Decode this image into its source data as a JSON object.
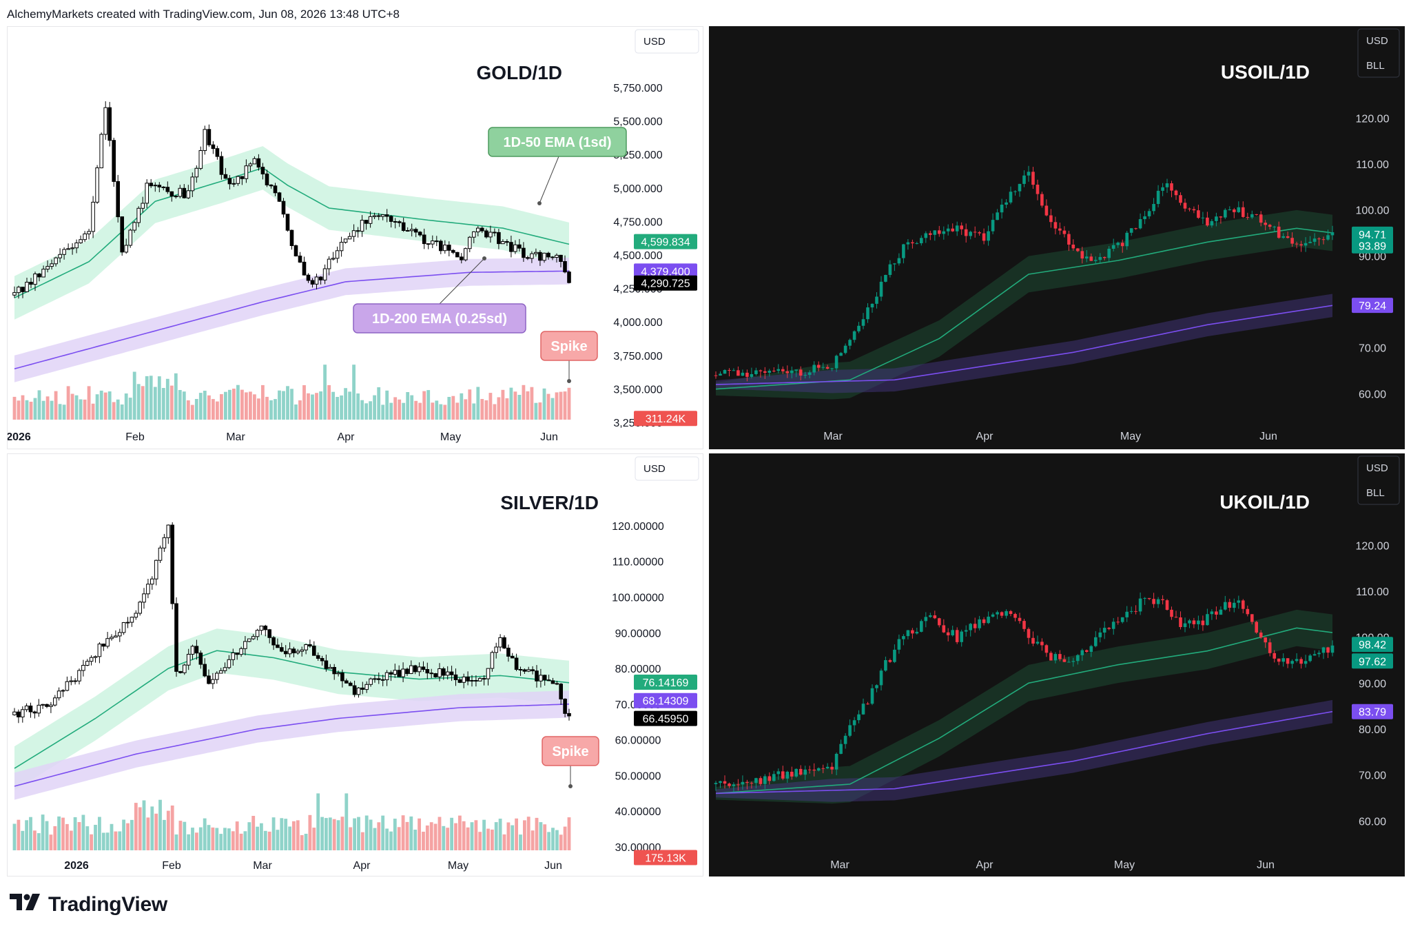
{
  "header": {
    "text": "AlchemyMarkets created with TradingView.com, Jun 08, 2026 13:48 UTC+8"
  },
  "footer": {
    "brand": "TradingView",
    "logo_icon": "tradingview-logo-icon"
  },
  "colors": {
    "up_light": "#26a69a",
    "down_light": "#ef5350",
    "up_dark": "#089981",
    "down_dark": "#f23645",
    "ema50": "#22ab7c",
    "ema200": "#7b4ef0",
    "band50_light": "#cdf3e1",
    "band200_light": "#e0d3f7",
    "vol_up": "#8fd3c9",
    "vol_down": "#f5a3a3"
  },
  "chart_data": [
    {
      "id": "gold",
      "type": "candlestick",
      "title": "GOLD/1D",
      "currency": "USD",
      "theme": "light",
      "yticks": [
        "5,750.000",
        "5,500.000",
        "5,250.000",
        "5,000.000",
        "4,750.000",
        "4,500.000",
        "4,250.000",
        "4,000.000",
        "3,750.000",
        "3,500.000",
        "3,250.000"
      ],
      "ylim": [
        3250,
        5750
      ],
      "xticks": [
        "2026",
        "Feb",
        "Mar",
        "Apr",
        "May",
        "Jun"
      ],
      "price_labels": [
        {
          "value": "4,599.834",
          "price": 4599.834,
          "color": "#22ab7c"
        },
        {
          "value": "4,379.400",
          "price": 4379.4,
          "color": "#7b4ef0"
        },
        {
          "value": "4,290.725",
          "price": 4290.725,
          "color": "#000000"
        },
        {
          "value": "311.24K",
          "price": 3280,
          "color": "#ef5350"
        }
      ],
      "annotations": [
        {
          "text": "1D-50 EMA (1sd)",
          "kind": "ema50"
        },
        {
          "text": "1D-200 EMA (0.25sd)",
          "kind": "ema200"
        },
        {
          "text": "Spike",
          "kind": "spike"
        }
      ],
      "volume_spike_index": "last",
      "series": [
        {
          "name": "price",
          "anchors": [
            [
              0,
              4200
            ],
            [
              8,
              4400
            ],
            [
              18,
              4700
            ],
            [
              22,
              5600
            ],
            [
              26,
              4500
            ],
            [
              32,
              5000
            ],
            [
              42,
              4950
            ],
            [
              46,
              5400
            ],
            [
              52,
              5000
            ],
            [
              58,
              5200
            ],
            [
              64,
              4900
            ],
            [
              68,
              4500
            ],
            [
              72,
              4250
            ],
            [
              76,
              4450
            ],
            [
              82,
              4700
            ],
            [
              90,
              4800
            ],
            [
              100,
              4600
            ],
            [
              108,
              4500
            ],
            [
              112,
              4700
            ],
            [
              118,
              4600
            ],
            [
              124,
              4480
            ],
            [
              130,
              4500
            ],
            [
              133,
              4400
            ],
            [
              134,
              4290
            ]
          ]
        },
        {
          "name": "1D-50 EMA",
          "anchors": [
            [
              0,
              4180
            ],
            [
              18,
              4450
            ],
            [
              34,
              4900
            ],
            [
              50,
              5050
            ],
            [
              60,
              5150
            ],
            [
              66,
              5020
            ],
            [
              76,
              4850
            ],
            [
              100,
              4760
            ],
            [
              118,
              4700
            ],
            [
              134,
              4580
            ]
          ]
        },
        {
          "name": "1D-200 EMA",
          "anchors": [
            [
              0,
              3650
            ],
            [
              30,
              3900
            ],
            [
              60,
              4150
            ],
            [
              80,
              4300
            ],
            [
              110,
              4370
            ],
            [
              134,
              4380
            ]
          ]
        }
      ]
    },
    {
      "id": "usoil",
      "type": "candlestick",
      "title": "USOIL/1D",
      "currency": "USD",
      "unit": "BLL",
      "theme": "dark",
      "yticks": [
        "120.00",
        "110.00",
        "100.00",
        "90.00",
        "80.00",
        "70.00",
        "60.00"
      ],
      "ylim": [
        56,
        128
      ],
      "xticks": [
        "Mar",
        "Apr",
        "May",
        "Jun"
      ],
      "price_labels": [
        {
          "value": "94.71",
          "price": 94.71,
          "color": "#089981"
        },
        {
          "value": "93.89",
          "price": 92.2,
          "color": "#089981"
        },
        {
          "value": "79.24",
          "price": 79.24,
          "color": "#7b4ef0"
        }
      ],
      "series": [
        {
          "name": "price",
          "anchors": [
            [
              0,
              64
            ],
            [
              10,
              64.5
            ],
            [
              20,
              65
            ],
            [
              26,
              66
            ],
            [
              30,
              72
            ],
            [
              34,
              78
            ],
            [
              38,
              86
            ],
            [
              42,
              92
            ],
            [
              48,
              95
            ],
            [
              54,
              96
            ],
            [
              60,
              94
            ],
            [
              66,
              104
            ],
            [
              70,
              108
            ],
            [
              74,
              98
            ],
            [
              78,
              94
            ],
            [
              84,
              88
            ],
            [
              90,
              92
            ],
            [
              96,
              98
            ],
            [
              100,
              106
            ],
            [
              104,
              102
            ],
            [
              110,
              97
            ],
            [
              116,
              100
            ],
            [
              120,
              99
            ],
            [
              124,
              97
            ],
            [
              128,
              93
            ],
            [
              132,
              93
            ],
            [
              136,
              94
            ],
            [
              138,
              94.7
            ]
          ]
        },
        {
          "name": "EMA-50",
          "anchors": [
            [
              0,
              61
            ],
            [
              30,
              63
            ],
            [
              50,
              72
            ],
            [
              70,
              86
            ],
            [
              90,
              89
            ],
            [
              110,
              93
            ],
            [
              130,
              96
            ],
            [
              138,
              95
            ]
          ]
        },
        {
          "name": "EMA-200",
          "anchors": [
            [
              0,
              62
            ],
            [
              40,
              63
            ],
            [
              80,
              69
            ],
            [
              110,
              75
            ],
            [
              138,
              79.2
            ]
          ]
        }
      ]
    },
    {
      "id": "silver",
      "type": "candlestick",
      "title": "SILVER/1D",
      "currency": "USD",
      "theme": "light",
      "yticks": [
        "120.00000",
        "110.00000",
        "100.00000",
        "90.00000",
        "80.00000",
        "70.00000",
        "60.00000",
        "50.00000",
        "40.00000",
        "30.00000"
      ],
      "ylim": [
        30,
        125
      ],
      "xticks": [
        "2026",
        "Feb",
        "Mar",
        "Apr",
        "May",
        "Jun"
      ],
      "price_labels": [
        {
          "value": "76.14169",
          "price": 76.14,
          "color": "#22ab7c"
        },
        {
          "value": "68.14309",
          "price": 71.0,
          "color": "#7b4ef0"
        },
        {
          "value": "66.45950",
          "price": 66.0,
          "color": "#000000"
        },
        {
          "value": "175.13K",
          "price": 27.0,
          "color": "#ef5350"
        }
      ],
      "annotations": [
        {
          "text": "Spike",
          "kind": "spike"
        }
      ],
      "volume_spike_index": "last",
      "series": [
        {
          "name": "price",
          "anchors": [
            [
              0,
              67
            ],
            [
              8,
              70
            ],
            [
              14,
              76
            ],
            [
              18,
              83
            ],
            [
              24,
              88
            ],
            [
              30,
              96
            ],
            [
              34,
              106
            ],
            [
              38,
              120
            ],
            [
              40,
              78
            ],
            [
              44,
              86
            ],
            [
              48,
              76
            ],
            [
              54,
              84
            ],
            [
              62,
              92
            ],
            [
              66,
              84
            ],
            [
              72,
              86
            ],
            [
              78,
              80
            ],
            [
              84,
              73
            ],
            [
              90,
              78
            ],
            [
              100,
              80
            ],
            [
              110,
              77
            ],
            [
              116,
              78
            ],
            [
              120,
              89
            ],
            [
              124,
              80
            ],
            [
              130,
              77
            ],
            [
              134,
              75
            ],
            [
              136,
              68
            ],
            [
              137,
              66.5
            ]
          ]
        },
        {
          "name": "1D-50 EMA",
          "anchors": [
            [
              0,
              52
            ],
            [
              20,
              66
            ],
            [
              38,
              80
            ],
            [
              50,
              85
            ],
            [
              64,
              83
            ],
            [
              80,
              79
            ],
            [
              100,
              77
            ],
            [
              120,
              78
            ],
            [
              137,
              76
            ]
          ]
        },
        {
          "name": "1D-200 EMA",
          "anchors": [
            [
              0,
              47
            ],
            [
              30,
              56
            ],
            [
              60,
              63
            ],
            [
              80,
              66
            ],
            [
              110,
              69
            ],
            [
              137,
              70
            ]
          ]
        }
      ]
    },
    {
      "id": "ukoil",
      "type": "candlestick",
      "title": "UKOIL/1D",
      "currency": "USD",
      "unit": "BLL",
      "theme": "dark",
      "yticks": [
        "120.00",
        "110.00",
        "100.00",
        "90.00",
        "80.00",
        "70.00",
        "60.00"
      ],
      "ylim": [
        56,
        128
      ],
      "xticks": [
        "Mar",
        "Apr",
        "May",
        "Jun"
      ],
      "price_labels": [
        {
          "value": "98.42",
          "price": 98.42,
          "color": "#089981"
        },
        {
          "value": "97.62",
          "price": 94.8,
          "color": "#089981"
        },
        {
          "value": "83.79",
          "price": 83.79,
          "color": "#7b4ef0"
        }
      ],
      "series": [
        {
          "name": "price",
          "anchors": [
            [
              0,
              68
            ],
            [
              10,
              69
            ],
            [
              20,
              71
            ],
            [
              26,
              72
            ],
            [
              30,
              80
            ],
            [
              34,
              86
            ],
            [
              38,
              94
            ],
            [
              42,
              100
            ],
            [
              48,
              104
            ],
            [
              54,
              100
            ],
            [
              60,
              104
            ],
            [
              66,
              106
            ],
            [
              72,
              98
            ],
            [
              78,
              94
            ],
            [
              84,
              98
            ],
            [
              90,
              104
            ],
            [
              96,
              108
            ],
            [
              100,
              108
            ],
            [
              104,
              102
            ],
            [
              110,
              104
            ],
            [
              116,
              108
            ],
            [
              120,
              104
            ],
            [
              124,
              96
            ],
            [
              128,
              94
            ],
            [
              132,
              95
            ],
            [
              136,
              97
            ],
            [
              138,
              98.4
            ]
          ]
        },
        {
          "name": "EMA-50",
          "anchors": [
            [
              0,
              66
            ],
            [
              30,
              68
            ],
            [
              50,
              78
            ],
            [
              70,
              90
            ],
            [
              90,
              94
            ],
            [
              110,
              97
            ],
            [
              130,
              102
            ],
            [
              138,
              101
            ]
          ]
        },
        {
          "name": "EMA-200",
          "anchors": [
            [
              0,
              66
            ],
            [
              40,
              67
            ],
            [
              80,
              73
            ],
            [
              110,
              79
            ],
            [
              138,
              83.8
            ]
          ]
        }
      ]
    }
  ]
}
